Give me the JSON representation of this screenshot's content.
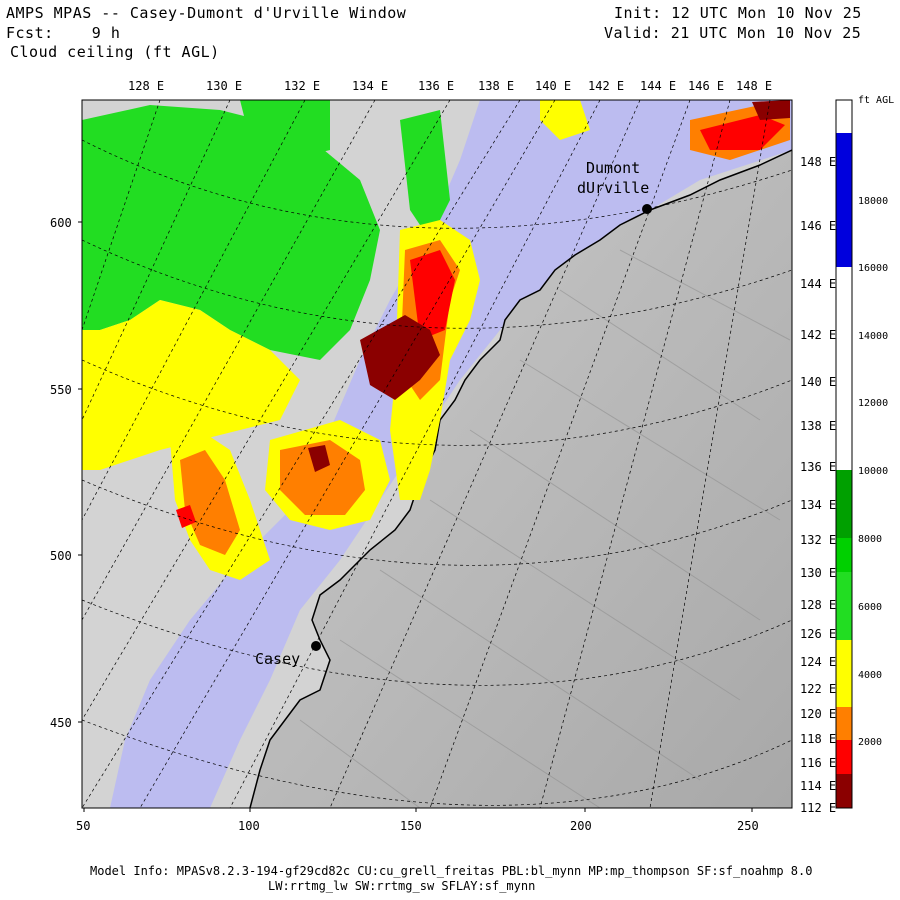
{
  "header": {
    "title": "AMPS MPAS -- Casey-Dumont d'Urville Window",
    "forecast": "Fcst:    9 h",
    "field": "Cloud ceiling (ft AGL)",
    "init": "Init: 12 UTC Mon 10 Nov 25",
    "valid": "Valid: 21 UTC Mon 10 Nov 25"
  },
  "map": {
    "top_lon_labels": [
      "128 E",
      "130 E",
      "132 E",
      "134 E",
      "136 E",
      "138 E",
      "140 E",
      "142 E",
      "144 E",
      "146 E",
      "148 E"
    ],
    "right_lon_labels": [
      "148 E",
      "146 E",
      "144 E",
      "142 E",
      "140 E",
      "138 E",
      "136 E",
      "134 E",
      "132 E",
      "130 E",
      "128 E",
      "126 E",
      "124 E",
      "122 E",
      "120 E",
      "118 E",
      "116 E",
      "114 E",
      "112 E"
    ],
    "left_grid_labels": [
      "600",
      "550",
      "500",
      "450"
    ],
    "bottom_grid_labels": [
      "50",
      "100",
      "150",
      "200",
      "250"
    ],
    "stations": [
      {
        "name": "Dumont",
        "name2": "dUrville"
      },
      {
        "name": "Casey"
      }
    ]
  },
  "colorbar": {
    "unit": "ft AGL",
    "tick_labels": [
      "18000",
      "16000",
      "14000",
      "12000",
      "10000",
      "8000",
      "6000",
      "4000",
      "2000"
    ],
    "colors": {
      "above_18000": "#ffffff",
      "16000_18000": "#0000dd",
      "10000_16000": "#ffffff",
      "8000_10000": "#00a000",
      "6000_8000": "#00d000",
      "4000_6000": "#22dd22",
      "2000_4000": "#ffff00",
      "1000_2000": "#ff7f00",
      "500_1000": "#ff0000",
      "0_500": "#8b0000"
    }
  },
  "footer": {
    "line1": "Model Info: MPASv8.2.3-194-gf29cd82c CU:cu_grell_freitas PBL:bl_mynn MP:mp_thompson SF:sf_noahmp 8.0",
    "line2": "LW:rrtmg_lw SW:rrtmg_sw SFLAY:sf_mynn"
  }
}
